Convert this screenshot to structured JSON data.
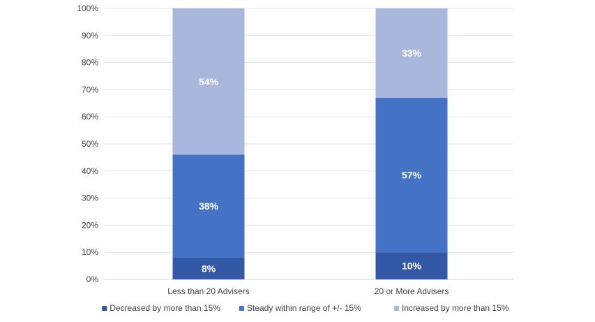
{
  "chart_data": {
    "type": "bar",
    "stacked": true,
    "categories": [
      "Less than 20 Advisers",
      "20 or More Advisers"
    ],
    "series": [
      {
        "name": "Decreased by more than 15%",
        "values": [
          8,
          10
        ],
        "labels": [
          "8%",
          "10%"
        ],
        "color": "#3358A5"
      },
      {
        "name": "Steady within range of +/- 15%",
        "values": [
          38,
          57
        ],
        "labels": [
          "38%",
          "57%"
        ],
        "color": "#4472C4"
      },
      {
        "name": "Increased by more than 15%",
        "values": [
          54,
          33
        ],
        "labels": [
          "54%",
          "33%"
        ],
        "color": "#A9B7DC"
      }
    ],
    "yticks": [
      "0%",
      "10%",
      "20%",
      "30%",
      "40%",
      "50%",
      "60%",
      "70%",
      "80%",
      "90%",
      "100%"
    ],
    "ylim": [
      0,
      100
    ],
    "grid": true,
    "legend_position": "bottom",
    "title": "",
    "xlabel": "",
    "ylabel": ""
  }
}
